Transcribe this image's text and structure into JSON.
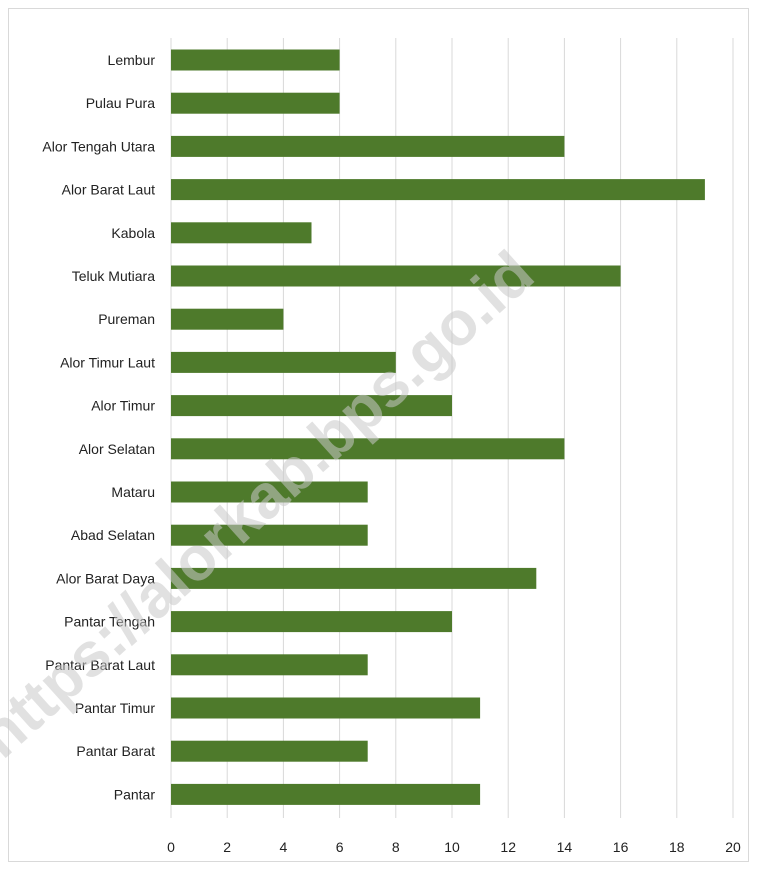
{
  "chart_data": {
    "type": "bar",
    "orientation": "horizontal",
    "categories": [
      "Lembur",
      "Pulau Pura",
      "Alor Tengah Utara",
      "Alor Barat Laut",
      "Kabola",
      "Teluk Mutiara",
      "Pureman",
      "Alor Timur Laut",
      "Alor Timur",
      "Alor Selatan",
      "Mataru",
      "Abad Selatan",
      "Alor Barat Daya",
      "Pantar Tengah",
      "Pantar Barat Laut",
      "Pantar Timur",
      "Pantar Barat",
      "Pantar"
    ],
    "values": [
      6,
      6,
      14,
      19,
      5,
      16,
      4,
      8,
      10,
      14,
      7,
      7,
      13,
      10,
      7,
      11,
      7,
      11
    ],
    "xlim": [
      0,
      20
    ],
    "xticks": [
      "0",
      "2",
      "4",
      "6",
      "8",
      "10",
      "12",
      "14",
      "16",
      "18",
      "20"
    ],
    "title": "",
    "xlabel": "",
    "ylabel": "",
    "grid": "vertical",
    "bar_color": "#4e7a2b",
    "grid_color": "#d9d9d9"
  },
  "watermark": {
    "text": "https://alorkab.bps.go.id",
    "color": "#c8c8c8"
  }
}
